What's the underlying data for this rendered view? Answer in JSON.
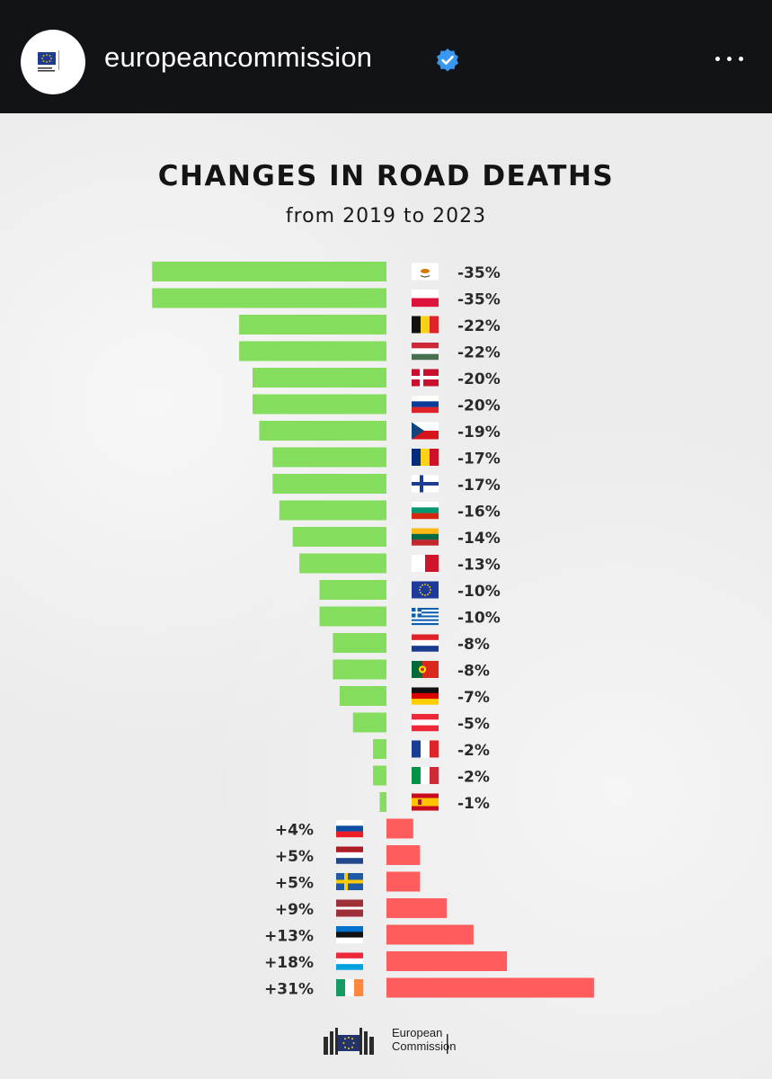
{
  "header": {
    "account_name": "europeancommission",
    "verified_icon": "verified-badge-icon",
    "more_icon": "more-options-icon",
    "avatar_text_1": "European",
    "avatar_text_2": "Commission"
  },
  "post": {
    "title": "CHANGES IN ROAD DEATHS",
    "subtitle": "from 2019 to 2023",
    "footer_line1": "European",
    "footer_line2": "Commission"
  },
  "colors": {
    "decrease": "#84dd5c",
    "increase": "#ff5d5d",
    "label": "#2a2a2a"
  },
  "chart_data": {
    "type": "bar",
    "title": "CHANGES IN ROAD DEATHS",
    "subtitle": "from 2019 to 2023",
    "unit": "%",
    "xlim": [
      -35,
      31
    ],
    "series": [
      {
        "country": "Cyprus",
        "flag": "cy",
        "value": -35,
        "label": "-35%"
      },
      {
        "country": "Poland",
        "flag": "pl",
        "value": -35,
        "label": "-35%"
      },
      {
        "country": "Belgium",
        "flag": "be",
        "value": -22,
        "label": "-22%"
      },
      {
        "country": "Hungary",
        "flag": "hu",
        "value": -22,
        "label": "-22%"
      },
      {
        "country": "Denmark",
        "flag": "dk",
        "value": -20,
        "label": "-20%"
      },
      {
        "country": "Slovenia",
        "flag": "si",
        "value": -20,
        "label": "-20%"
      },
      {
        "country": "Czechia",
        "flag": "cz",
        "value": -19,
        "label": "-19%"
      },
      {
        "country": "Romania",
        "flag": "ro",
        "value": -17,
        "label": "-17%"
      },
      {
        "country": "Finland",
        "flag": "fi",
        "value": -17,
        "label": "-17%"
      },
      {
        "country": "Bulgaria",
        "flag": "bg",
        "value": -16,
        "label": "-16%"
      },
      {
        "country": "Lithuania",
        "flag": "lt",
        "value": -14,
        "label": "-14%"
      },
      {
        "country": "Malta",
        "flag": "mt",
        "value": -13,
        "label": "-13%"
      },
      {
        "country": "EU",
        "flag": "eu",
        "value": -10,
        "label": "-10%"
      },
      {
        "country": "Greece",
        "flag": "gr",
        "value": -10,
        "label": "-10%"
      },
      {
        "country": "Croatia",
        "flag": "hr",
        "value": -8,
        "label": "-8%"
      },
      {
        "country": "Portugal",
        "flag": "pt",
        "value": -8,
        "label": "-8%"
      },
      {
        "country": "Germany",
        "flag": "de",
        "value": -7,
        "label": "-7%"
      },
      {
        "country": "Austria",
        "flag": "at",
        "value": -5,
        "label": "-5%"
      },
      {
        "country": "France",
        "flag": "fr",
        "value": -2,
        "label": "-2%"
      },
      {
        "country": "Italy",
        "flag": "it",
        "value": -2,
        "label": "-2%"
      },
      {
        "country": "Spain",
        "flag": "es",
        "value": -1,
        "label": "-1%"
      },
      {
        "country": "Slovakia",
        "flag": "sk",
        "value": 4,
        "label": "+4%"
      },
      {
        "country": "Netherlands",
        "flag": "nl",
        "value": 5,
        "label": "+5%"
      },
      {
        "country": "Sweden",
        "flag": "se",
        "value": 5,
        "label": "+5%"
      },
      {
        "country": "Latvia",
        "flag": "lv",
        "value": 9,
        "label": "+9%"
      },
      {
        "country": "Estonia",
        "flag": "ee",
        "value": 13,
        "label": "+13%"
      },
      {
        "country": "Luxembourg",
        "flag": "lu",
        "value": 18,
        "label": "+18%"
      },
      {
        "country": "Ireland",
        "flag": "ie",
        "value": 31,
        "label": "+31%"
      }
    ]
  }
}
